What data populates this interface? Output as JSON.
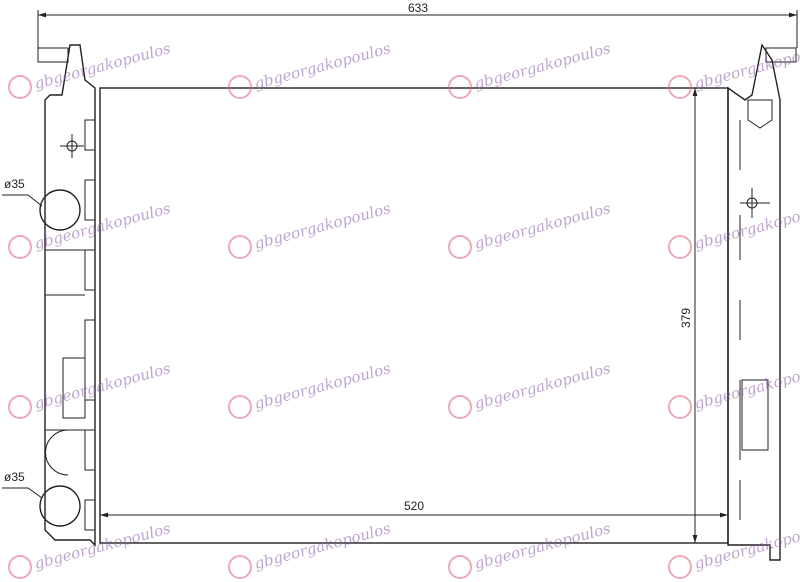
{
  "diagram": {
    "dimensions": {
      "overall_width": 633,
      "core_width": 520,
      "core_height": 379
    },
    "diameters": [
      "ø35",
      "ø35"
    ],
    "watermark": "gbgeorgakopoulos"
  }
}
